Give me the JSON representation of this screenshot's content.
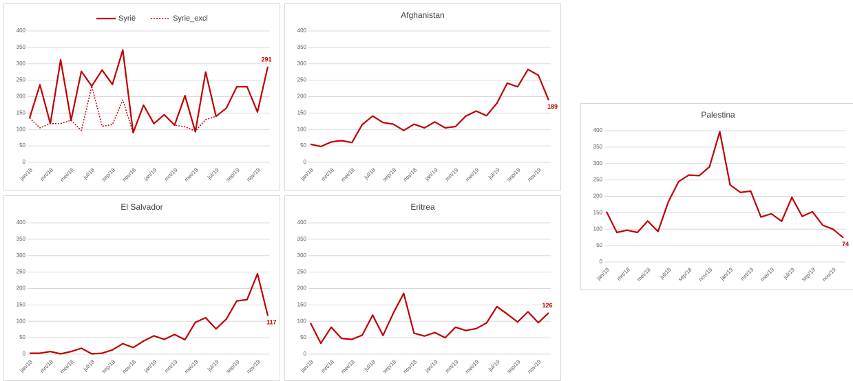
{
  "chart_data": [
    {
      "type": "line",
      "categories": [
        "jan/18",
        null,
        "mrt/18",
        null,
        "mei/18",
        null,
        "jul/18",
        null,
        "sep/18",
        null,
        "nov/18",
        null,
        "jan/19",
        null,
        "mrt/19",
        null,
        "mei/19",
        null,
        "jul/19",
        null,
        "sep/19",
        null,
        "nov/19",
        null
      ],
      "series": [
        {
          "name": "Syrië",
          "color": "#c00000",
          "values": [
            135,
            236,
            118,
            312,
            128,
            277,
            232,
            281,
            237,
            342,
            90,
            174,
            118,
            145,
            113,
            203,
            93,
            275,
            140,
            165,
            230,
            230,
            153,
            291
          ]
        },
        {
          "name": "Syrie_excl",
          "color": "#c00000",
          "dash": true,
          "values": [
            135,
            105,
            118,
            118,
            128,
            97,
            232,
            110,
            115,
            190,
            90,
            174,
            118,
            145,
            113,
            108,
            95,
            130,
            140,
            165,
            230,
            230,
            153,
            291
          ]
        }
      ],
      "ylim": [
        0,
        400
      ],
      "yticks": [
        0,
        50,
        100,
        150,
        200,
        250,
        300,
        350,
        400
      ],
      "grid": true,
      "legend": "top"
    },
    {
      "type": "line",
      "title": "Afghanistan",
      "categories": [
        "jan/18",
        null,
        "mrt/18",
        null,
        "mei/18",
        null,
        "jul/18",
        null,
        "sep/18",
        null,
        "nov/18",
        null,
        "jan/19",
        null,
        "mrt/19",
        null,
        "mei/19",
        null,
        "jul/19",
        null,
        "sep/19",
        null,
        "nov/19",
        null
      ],
      "series": [
        {
          "name": "Afghanistan",
          "color": "#c00000",
          "values": [
            55,
            48,
            62,
            66,
            60,
            115,
            141,
            121,
            116,
            97,
            116,
            105,
            123,
            105,
            109,
            141,
            156,
            142,
            180,
            241,
            230,
            283,
            265,
            189
          ]
        }
      ],
      "ylim": [
        0,
        400
      ],
      "yticks": [
        0,
        50,
        100,
        150,
        200,
        250,
        300,
        350,
        400
      ],
      "grid": true
    },
    {
      "type": "line",
      "title": "El Salvador",
      "categories": [
        "jan/18",
        null,
        "mrt/18",
        null,
        "mei/18",
        null,
        "jul/18",
        null,
        "sep/18",
        null,
        "nov/18",
        null,
        "jan/19",
        null,
        "mrt/19",
        null,
        "mei/19",
        null,
        "jul/19",
        null,
        "sep/19",
        null,
        "nov/19",
        null
      ],
      "series": [
        {
          "name": "El Salvador",
          "color": "#c00000",
          "values": [
            3,
            3,
            8,
            1,
            8,
            18,
            1,
            3,
            13,
            32,
            20,
            40,
            56,
            45,
            60,
            44,
            97,
            111,
            77,
            107,
            162,
            166,
            245,
            117
          ]
        }
      ],
      "ylim": [
        0,
        400
      ],
      "yticks": [
        0,
        50,
        100,
        150,
        200,
        250,
        300,
        350,
        400
      ],
      "grid": true
    },
    {
      "type": "line",
      "title": "Eritrea",
      "categories": [
        "jan/18",
        null,
        "mrt/18",
        null,
        "mei/18",
        null,
        "jul/18",
        null,
        "sep/18",
        null,
        "nov/18",
        null,
        "jan/19",
        null,
        "mrt/19",
        null,
        "mei/19",
        null,
        "jul/19",
        null,
        "sep/19",
        null,
        "nov/19",
        null
      ],
      "series": [
        {
          "name": "Eritrea",
          "color": "#c00000",
          "values": [
            95,
            33,
            82,
            48,
            45,
            58,
            119,
            57,
            125,
            185,
            64,
            55,
            66,
            50,
            82,
            72,
            78,
            95,
            145,
            122,
            98,
            129,
            96,
            126
          ]
        }
      ],
      "ylim": [
        0,
        400
      ],
      "yticks": [
        0,
        50,
        100,
        150,
        200,
        250,
        300,
        350,
        400
      ],
      "grid": true
    },
    {
      "type": "line",
      "title": "Palestina",
      "categories": [
        "jan/18",
        null,
        "mrt/18",
        null,
        "mei/18",
        null,
        "jul/18",
        null,
        "sep/18",
        null,
        "nov/18",
        null,
        "jan/19",
        null,
        "mrt/19",
        null,
        "mei/19",
        null,
        "jul/19",
        null,
        "sep/19",
        null,
        "nov/19",
        null
      ],
      "series": [
        {
          "name": "Palestina",
          "color": "#c00000",
          "values": [
            153,
            90,
            97,
            90,
            125,
            93,
            183,
            245,
            265,
            263,
            290,
            397,
            235,
            212,
            216,
            137,
            147,
            124,
            197,
            139,
            153,
            112,
            100,
            74
          ]
        }
      ],
      "ylim": [
        0,
        400
      ],
      "yticks": [
        0,
        50,
        100,
        150,
        200,
        250,
        300,
        350,
        400
      ],
      "grid": true
    }
  ]
}
